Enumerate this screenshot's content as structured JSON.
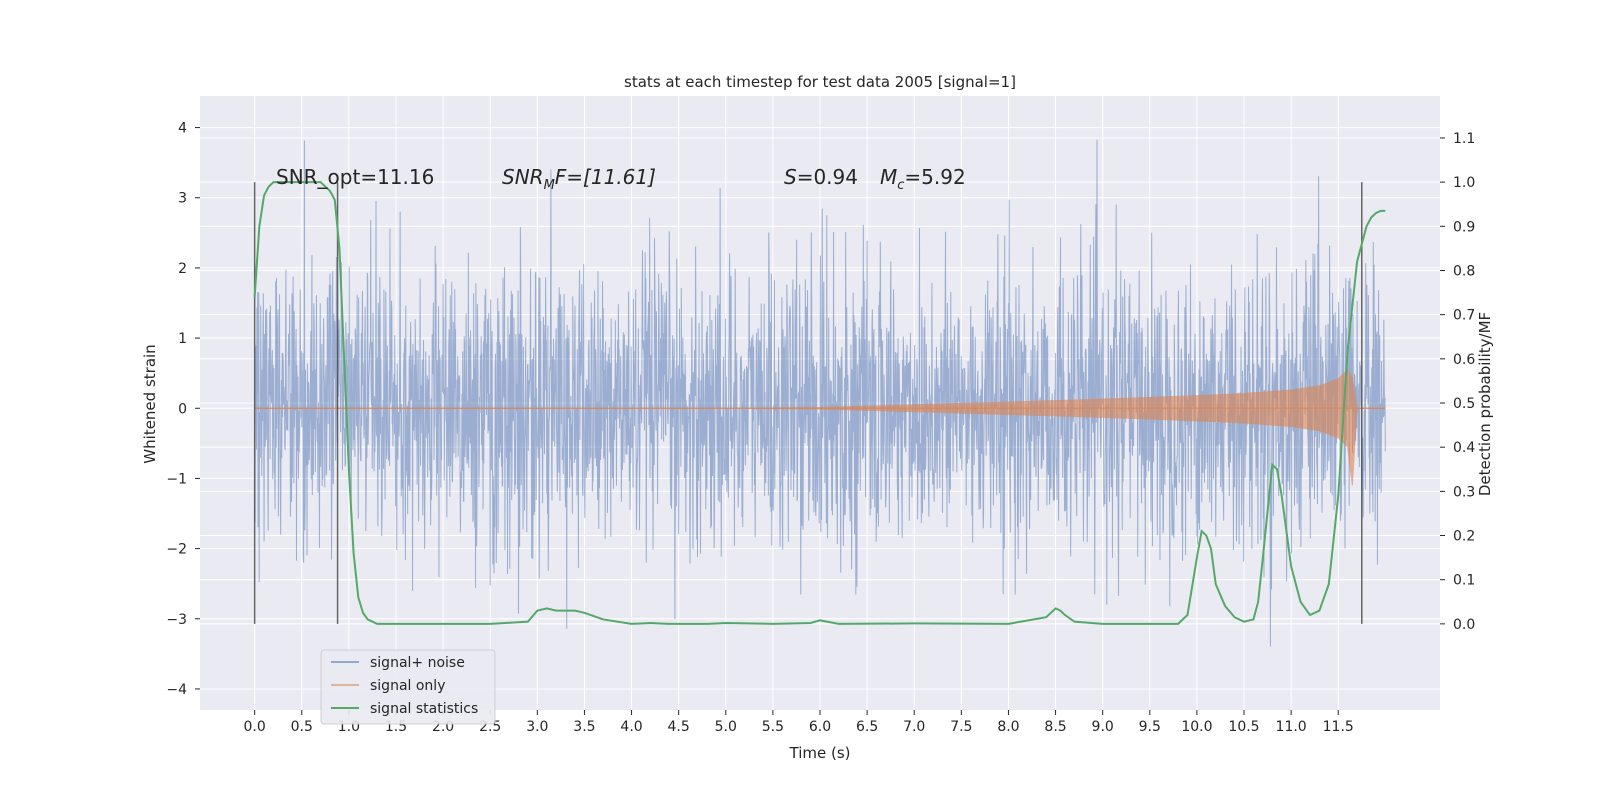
{
  "chart_data": {
    "type": "line",
    "title": "stats at each timestep for test data 2005 [signal=1]",
    "xlabel": "Time (s)",
    "ylabel_left": "Whitened strain",
    "ylabel_right": "Detection probability/MF",
    "xlim": [
      -0.58,
      12.58
    ],
    "ylim_left": [
      -4.3,
      4.45
    ],
    "ylim_right": [
      -0.195,
      1.195
    ],
    "x_ticks": [
      0.0,
      0.5,
      1.0,
      1.5,
      2.0,
      2.5,
      3.0,
      3.5,
      4.0,
      4.5,
      5.0,
      5.5,
      6.0,
      6.5,
      7.0,
      7.5,
      8.0,
      8.5,
      9.0,
      9.5,
      10.0,
      10.5,
      11.0,
      11.5
    ],
    "x_tick_labels": [
      "0.0",
      "0.5",
      "1.0",
      "1.5",
      "2.0",
      "2.5",
      "3.0",
      "3.5",
      "4.0",
      "4.5",
      "5.0",
      "5.5",
      "6.0",
      "6.5",
      "7.0",
      "7.5",
      "8.0",
      "8.5",
      "9.0",
      "9.5",
      "10.0",
      "10.5",
      "11.0",
      "11.5"
    ],
    "y_ticks_left": [
      -4,
      -3,
      -2,
      -1,
      0,
      1,
      2,
      3,
      4
    ],
    "y_tick_labels_left": [
      "−4",
      "−3",
      "−2",
      "−1",
      "0",
      "1",
      "2",
      "3",
      "4"
    ],
    "y_ticks_right": [
      0.0,
      0.1,
      0.2,
      0.3,
      0.4,
      0.5,
      0.6,
      0.7,
      0.8,
      0.9,
      1.0,
      1.1
    ],
    "y_tick_labels_right": [
      "0.0",
      "0.1",
      "0.2",
      "0.3",
      "0.4",
      "0.5",
      "0.6",
      "0.7",
      "0.8",
      "0.9",
      "1.0",
      "1.1"
    ],
    "grid": true,
    "legend_position": "bottom-left",
    "annotations": {
      "snr_opt": "SNR_opt=11.16",
      "snr_mf_main": "SNR",
      "snr_mf_sub": "M",
      "snr_mf_rest": "F=[11.61]",
      "s_main": "S",
      "s_rest": "=0.94",
      "mc_main": "M",
      "mc_sub": "c",
      "mc_rest": "=5.92"
    },
    "series": [
      {
        "name": "signal+ noise",
        "color": "#4c72b0",
        "axis": "left",
        "description_values": {
          "x_range": [
            0.0,
            12.0
          ],
          "typical_range": [
            -2.0,
            2.0
          ],
          "peak_max": 4.08,
          "peak_min": -3.85
        }
      },
      {
        "name": "signal only",
        "color": "#dd8452",
        "axis": "left",
        "envelope": {
          "x": [
            0.0,
            5.0,
            6.0,
            7.0,
            8.0,
            9.0,
            10.0,
            10.5,
            11.0,
            11.3,
            11.5,
            11.6,
            11.65,
            11.7,
            12.0
          ],
          "amplitude": [
            0.0,
            0.0,
            0.01,
            0.05,
            0.09,
            0.13,
            0.18,
            0.21,
            0.26,
            0.32,
            0.42,
            0.55,
            1.1,
            0.0,
            0.0
          ]
        }
      },
      {
        "name": "signal statistics",
        "color": "#55a868",
        "axis": "right",
        "x": [
          0.0,
          0.05,
          0.1,
          0.15,
          0.2,
          0.3,
          0.4,
          0.5,
          0.6,
          0.7,
          0.75,
          0.8,
          0.85,
          0.9,
          0.95,
          1.0,
          1.05,
          1.1,
          1.15,
          1.2,
          1.3,
          1.5,
          2.0,
          2.5,
          2.9,
          3.0,
          3.1,
          3.2,
          3.3,
          3.4,
          3.5,
          3.7,
          4.0,
          4.2,
          4.4,
          4.8,
          5.0,
          5.5,
          5.9,
          6.0,
          6.2,
          7.0,
          8.0,
          8.4,
          8.5,
          8.55,
          8.6,
          8.7,
          9.0,
          9.5,
          9.8,
          9.9,
          10.0,
          10.05,
          10.1,
          10.15,
          10.2,
          10.3,
          10.4,
          10.5,
          10.6,
          10.65,
          10.7,
          10.8,
          10.85,
          10.9,
          11.0,
          11.1,
          11.2,
          11.3,
          11.4,
          11.5,
          11.6,
          11.7,
          11.8,
          11.85,
          11.9,
          11.95,
          12.0
        ],
        "values": [
          0.74,
          0.9,
          0.97,
          0.99,
          1.0,
          1.0,
          1.0,
          1.0,
          1.0,
          1.0,
          0.99,
          0.98,
          0.96,
          0.85,
          0.6,
          0.35,
          0.16,
          0.06,
          0.025,
          0.01,
          0.0,
          0.0,
          0.0,
          0.0,
          0.005,
          0.03,
          0.035,
          0.03,
          0.03,
          0.03,
          0.025,
          0.01,
          0.0,
          0.002,
          0.0,
          0.0,
          0.002,
          0.0,
          0.002,
          0.008,
          0.0,
          0.001,
          0.0,
          0.015,
          0.035,
          0.03,
          0.02,
          0.005,
          0.0,
          0.0,
          0.0,
          0.02,
          0.15,
          0.21,
          0.2,
          0.17,
          0.09,
          0.04,
          0.015,
          0.005,
          0.01,
          0.05,
          0.15,
          0.36,
          0.35,
          0.29,
          0.13,
          0.05,
          0.02,
          0.03,
          0.09,
          0.29,
          0.62,
          0.82,
          0.9,
          0.92,
          0.93,
          0.935,
          0.935
        ]
      }
    ],
    "vertical_lines_x": [
      0.0,
      0.88,
      11.75
    ]
  }
}
